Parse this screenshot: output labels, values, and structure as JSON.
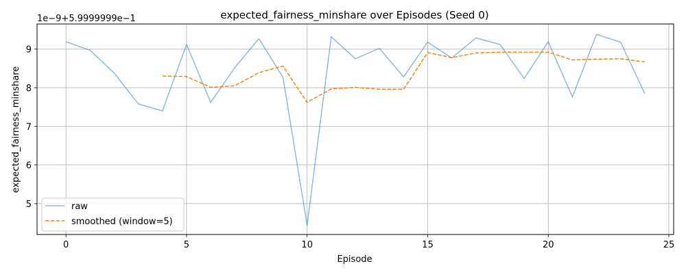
{
  "chart_data": {
    "type": "line",
    "title": "expected_fairness_minshare over Episodes (Seed 0)",
    "xlabel": "Episode",
    "ylabel": "expected_fairness_minshare",
    "offset_label": "1e−9+5.9999999e−1",
    "xlim": [
      -1.2,
      25.2
    ],
    "ylim": [
      4.2,
      9.65
    ],
    "xticks": [
      0,
      5,
      10,
      15,
      20,
      25
    ],
    "yticks": [
      5,
      6,
      7,
      8,
      9
    ],
    "grid": true,
    "legend_position": "lower-left",
    "series": [
      {
        "name": "raw",
        "color": "#1f77b4",
        "style": "solid",
        "x": [
          0,
          1,
          2,
          3,
          4,
          5,
          6,
          7,
          8,
          9,
          10,
          11,
          12,
          13,
          14,
          15,
          16,
          17,
          18,
          19,
          20,
          21,
          22,
          23,
          24
        ],
        "y": [
          9.19,
          8.97,
          8.38,
          7.58,
          7.4,
          9.12,
          7.62,
          8.52,
          9.27,
          8.27,
          4.44,
          9.32,
          8.75,
          9.02,
          8.28,
          9.18,
          8.77,
          9.29,
          9.12,
          8.24,
          9.19,
          7.76,
          9.38,
          9.18,
          7.85
        ]
      },
      {
        "name": "smoothed (window=5)",
        "color": "#ff7f0e",
        "style": "dashed",
        "x": [
          4,
          5,
          6,
          7,
          8,
          9,
          10,
          11,
          12,
          13,
          14,
          15,
          16,
          17,
          18,
          19,
          20,
          21,
          22,
          23,
          24
        ],
        "y": [
          8.3,
          8.29,
          8.01,
          8.05,
          8.39,
          8.56,
          7.62,
          7.97,
          8.01,
          7.96,
          7.96,
          8.91,
          8.78,
          8.9,
          8.92,
          8.92,
          8.92,
          8.72,
          8.74,
          8.75,
          8.67
        ]
      }
    ]
  }
}
